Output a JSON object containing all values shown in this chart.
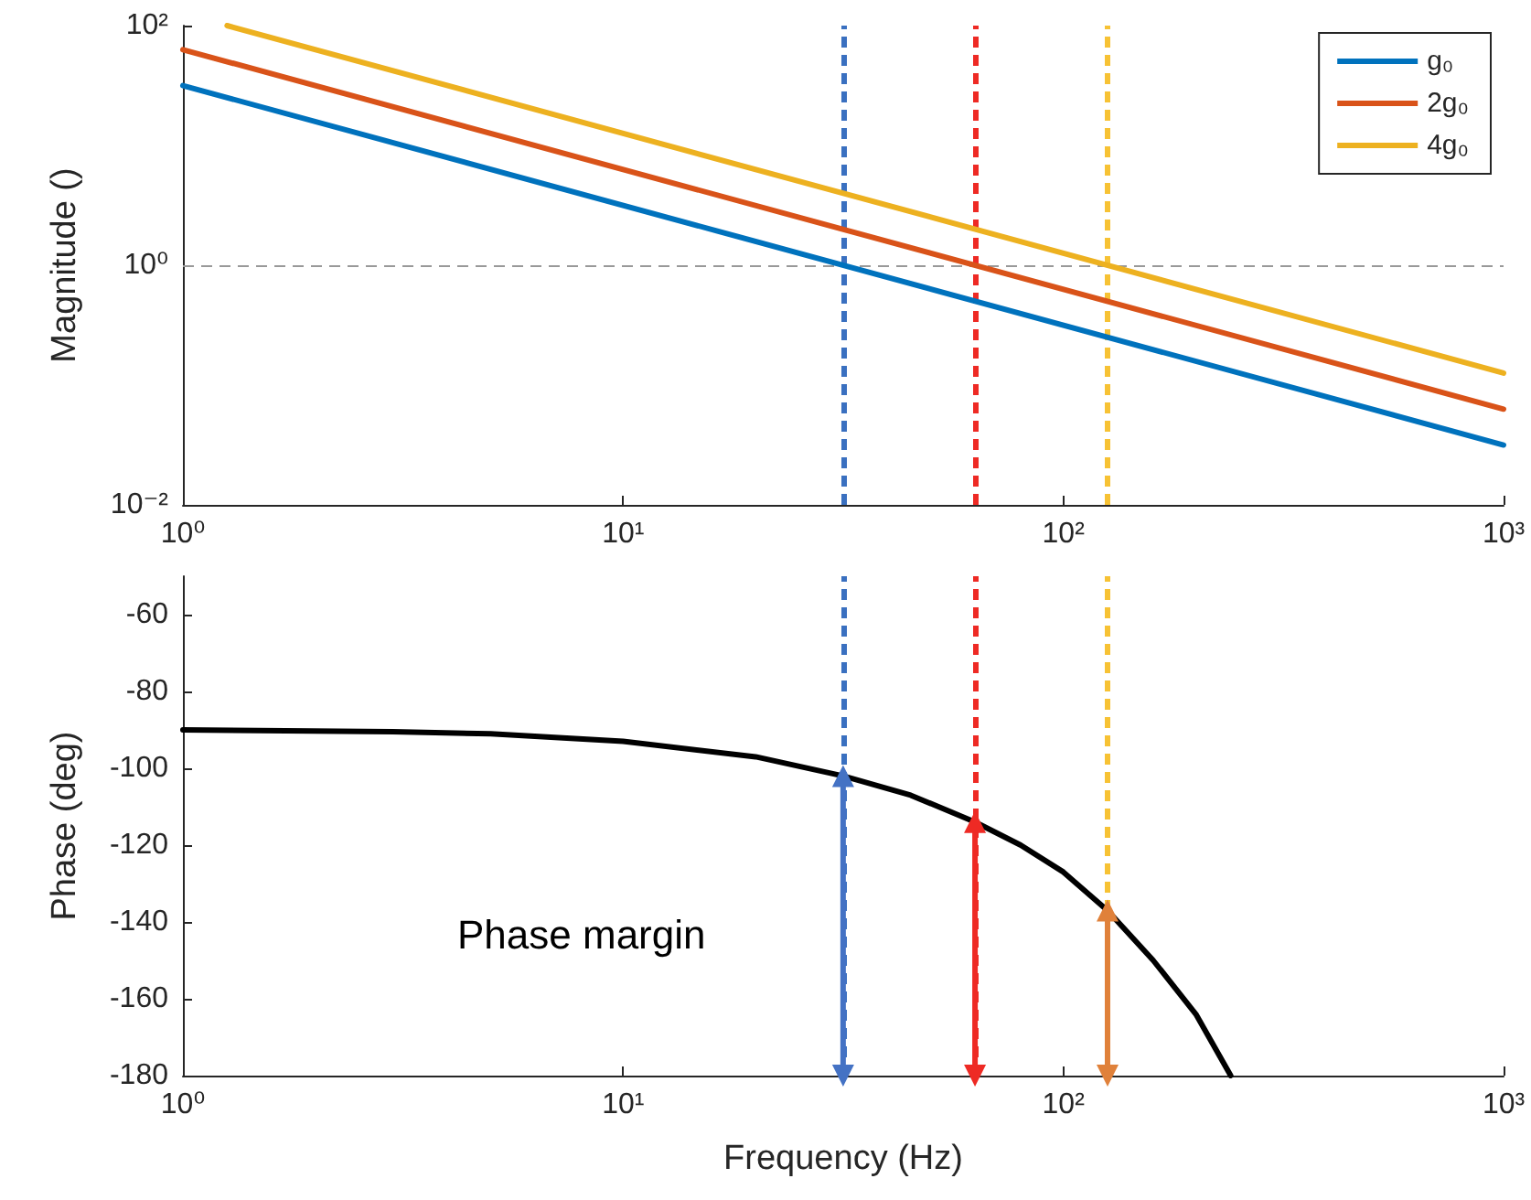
{
  "chart_data": [
    {
      "type": "line",
      "ylabel": "Magnitude ()",
      "log": "xy",
      "grid": false,
      "legend": "top right",
      "marker": "none",
      "line_style": "solid",
      "xlim": [
        1,
        1000
      ],
      "xticks": [
        {
          "value": 1,
          "label": "10⁰"
        },
        {
          "value": 10,
          "label": "10¹"
        },
        {
          "value": 100,
          "label": "10²"
        },
        {
          "value": 1000,
          "label": "10³"
        }
      ],
      "ylim": [
        0.01,
        100
      ],
      "yticks": [
        {
          "value": 0.01,
          "label": "10⁻²"
        },
        {
          "value": 1,
          "label": "10⁰"
        },
        {
          "value": 100,
          "label": "10²"
        }
      ],
      "series": [
        {
          "name": "g₀",
          "color": "#0072bd",
          "x": [
            1,
            1000
          ],
          "values": [
            31.6,
            0.0316
          ]
        },
        {
          "name": "2g₀",
          "color": "#d95319",
          "x": [
            1,
            1000
          ],
          "values": [
            63,
            0.063
          ]
        },
        {
          "name": "4g₀",
          "color": "#edb120",
          "x": [
            1.26,
            1000
          ],
          "values": [
            100,
            0.126
          ]
        }
      ],
      "ref_lines": [
        {
          "axis": "y",
          "value": 1,
          "color": "#999999",
          "line_style": "dashed"
        },
        {
          "axis": "x",
          "value": 31.6,
          "color": "#3a70c0",
          "line_style": "dashed"
        },
        {
          "axis": "x",
          "value": 63,
          "color": "#ee2a24",
          "line_style": "dashed"
        },
        {
          "axis": "x",
          "value": 126,
          "color": "#f7c234",
          "line_style": "dashed"
        }
      ]
    },
    {
      "type": "line",
      "xlabel": "Frequency (Hz)",
      "ylabel": "Phase (deg)",
      "log": "x",
      "grid": false,
      "legend": false,
      "marker": "none",
      "line_style": "solid",
      "xlim": [
        1,
        1000
      ],
      "xticks": [
        {
          "value": 1,
          "label": "10⁰"
        },
        {
          "value": 10,
          "label": "10¹"
        },
        {
          "value": 100,
          "label": "10²"
        },
        {
          "value": 1000,
          "label": "10³"
        }
      ],
      "ylim": [
        -180,
        -50
      ],
      "yticks": [
        -180,
        -160,
        -140,
        -120,
        -100,
        -80,
        -60
      ],
      "annotations": [
        "Phase margin"
      ],
      "series": [
        {
          "color": "#000000",
          "x": [
            1,
            3,
            5,
            10,
            20,
            31.6,
            45,
            63,
            80,
            100,
            126,
            160,
            200,
            240
          ],
          "values": [
            -90,
            -90.5,
            -91,
            -93,
            -97,
            -102,
            -107,
            -114,
            -120,
            -127,
            -137,
            -150,
            -164,
            -180
          ]
        },
        {
          "color": "#4472c4",
          "marker": "triangle",
          "x": [
            31.6,
            31.6
          ],
          "values": [
            -180,
            -102
          ]
        },
        {
          "color": "#ee2a24",
          "marker": "triangle",
          "x": [
            63,
            63
          ],
          "values": [
            -180,
            -114
          ]
        },
        {
          "color": "#e0813a",
          "marker": "triangle",
          "x": [
            126,
            126
          ],
          "values": [
            -180,
            -137
          ]
        }
      ],
      "ref_lines": [
        {
          "axis": "x",
          "value": 31.6,
          "color": "#3a70c0",
          "line_style": "dashed"
        },
        {
          "axis": "x",
          "value": 63,
          "color": "#ee2a24",
          "line_style": "dashed"
        },
        {
          "axis": "x",
          "value": 126,
          "color": "#f7c234",
          "line_style": "dashed"
        }
      ]
    }
  ]
}
